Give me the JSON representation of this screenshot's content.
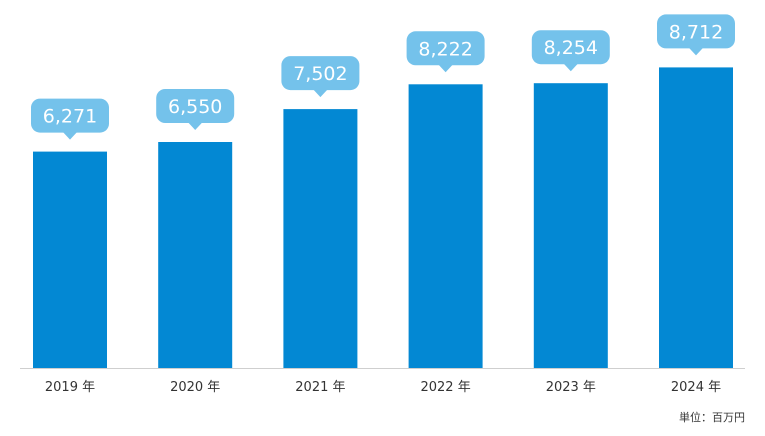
{
  "chart_data": {
    "type": "bar",
    "categories": [
      "2019 年",
      "2020 年",
      "2021 年",
      "2022 年",
      "2023 年",
      "2024 年"
    ],
    "values": [
      6271,
      6550,
      7502,
      8222,
      8254,
      8712
    ],
    "data_labels": [
      "6,271",
      "6,550",
      "7,502",
      "8,222",
      "8,254",
      "8,712"
    ],
    "unit_label": "単位：百万円",
    "ylim": [
      0,
      9000
    ],
    "grid": false,
    "colors": {
      "bar": "#0388d3",
      "label_bubble": "#74c2eb",
      "label_text": "#ffffff"
    }
  }
}
